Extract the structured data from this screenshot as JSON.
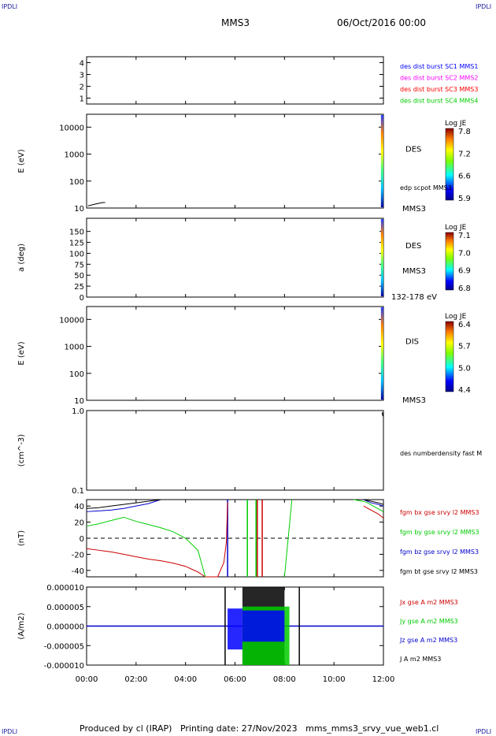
{
  "header": {
    "corner_tl": "IPDLI",
    "corner_tr": "IPDLI",
    "corner_bl": "IPDLI",
    "corner_br": "IPDLI",
    "spacecraft": "MMS3",
    "date": "06/Oct/2016 00:00"
  },
  "footer": {
    "text": "Produced by cl (IRAP)   Printing date: 27/Nov/2023   mms_mms3_srvy_vue_web1.cl"
  },
  "colors": {
    "mms1": "#0000ff",
    "mms2": "#ff00ff",
    "mms3": "#ff0000",
    "mms4": "#00cc00",
    "bx": "#cc0000",
    "by": "#00cc00",
    "bz": "#0000cc",
    "bt": "#000000"
  },
  "chart_data": [
    {
      "type": "line",
      "panel": "burst flags",
      "ylim": [
        0.5,
        4.5
      ],
      "yticks": [
        "1",
        "2",
        "3",
        "4"
      ],
      "legend": [
        {
          "label": "des dist burst SC1 MMS1",
          "color": "#0000ff"
        },
        {
          "label": "des dist burst SC2 MMS2",
          "color": "#ff00ff"
        },
        {
          "label": "des dist burst SC3 MMS3",
          "color": "#ff0000"
        },
        {
          "label": "des dist burst SC4 MMS4",
          "color": "#00cc00"
        }
      ],
      "series": []
    },
    {
      "type": "heatmap",
      "panel": "DES energy spectrogram",
      "ylabel": "E (eV)",
      "scale": "log",
      "ylim": [
        10,
        30000
      ],
      "yticks": [
        "10",
        "100",
        "1000",
        "10000"
      ],
      "label": "DES",
      "overlay_label": "edp scpot MMS3",
      "sc_label": "MMS3",
      "colorbar": {
        "title": "Log JE",
        "ticks": [
          "7.8",
          "7.2",
          "6.6",
          "5.9"
        ]
      },
      "data_interval_hours": [
        11.9,
        12.0
      ],
      "overlay_scpot": [
        [
          0.05,
          12
        ],
        [
          0.2,
          13
        ],
        [
          0.35,
          14
        ],
        [
          0.5,
          15
        ],
        [
          0.65,
          16
        ],
        [
          0.75,
          16
        ]
      ]
    },
    {
      "type": "heatmap",
      "panel": "DES pitch angle",
      "ylabel": "a (deg)",
      "ylim": [
        0,
        180
      ],
      "yticks": [
        "0",
        "25",
        "50",
        "75",
        "100",
        "125",
        "150"
      ],
      "label": "DES",
      "sc_label": "MMS3",
      "energy_range": "132-178 eV",
      "colorbar": {
        "title": "Log JE",
        "ticks": [
          "7.1",
          "7.0",
          "6.9",
          "6.8"
        ]
      },
      "data_interval_hours": [
        11.9,
        12.0
      ]
    },
    {
      "type": "heatmap",
      "panel": "DIS energy spectrogram",
      "ylabel": "E (eV)",
      "scale": "log",
      "ylim": [
        10,
        30000
      ],
      "yticks": [
        "10",
        "100",
        "1000",
        "10000"
      ],
      "label": "DIS",
      "sc_label": "MMS3",
      "colorbar": {
        "title": "Log JE",
        "ticks": [
          "6.4",
          "5.7",
          "5.0",
          "4.4"
        ]
      },
      "data_interval_hours": [
        11.9,
        12.0
      ]
    },
    {
      "type": "line",
      "panel": "density",
      "ylabel": "(cm^-3)",
      "scale": "log",
      "ylim": [
        0.1,
        1.0
      ],
      "yticks": [
        "0.1",
        "1.0"
      ],
      "legend": [
        {
          "label": "des numberdensity fast M",
          "color": "#000000"
        }
      ],
      "series": [
        {
          "x": [
            11.95,
            11.98
          ],
          "y": [
            0.95,
            0.85
          ]
        }
      ]
    },
    {
      "type": "line",
      "panel": "magnetic field",
      "ylabel": "(nT)",
      "ylim": [
        -48,
        48
      ],
      "yticks": [
        "-40",
        "-20",
        "0",
        "20",
        "40"
      ],
      "legend": [
        {
          "label": "fgm bx gse srvy l2 MMS3",
          "color": "#cc0000"
        },
        {
          "label": "fgm by gse srvy l2 MMS3",
          "color": "#00cc00"
        },
        {
          "label": "fgm bz gse srvy l2 MMS3",
          "color": "#0000cc"
        },
        {
          "label": "fgm bt gse srvy l2 MMS3",
          "color": "#000000"
        }
      ],
      "series": [
        {
          "name": "fgm bx gse srvy l2 MMS3",
          "x": [
            0,
            0.5,
            1,
            1.5,
            2,
            2.5,
            3,
            3.5,
            4,
            4.5,
            4.8,
            5.3,
            5.55,
            5.65,
            5.7,
            11.2,
            11.5,
            11.8,
            12
          ],
          "y": [
            -13,
            -15,
            -17,
            -20,
            -23,
            -26,
            -28,
            -31,
            -35,
            -42,
            -48,
            -48,
            -30,
            -5,
            45,
            40,
            35,
            30,
            25
          ]
        },
        {
          "name": "fgm by gse srvy l2 MMS3",
          "x": [
            0,
            0.5,
            1,
            1.5,
            2,
            2.5,
            3,
            3.5,
            4,
            4.5,
            4.8,
            8.0,
            8.15,
            8.3,
            10.8,
            11.3,
            11.7,
            12
          ],
          "y": [
            15,
            18,
            22,
            26,
            21,
            17,
            13,
            8,
            0,
            -15,
            -48,
            -48,
            0,
            48,
            48,
            45,
            38,
            33
          ]
        },
        {
          "name": "fgm bz gse srvy l2 MMS3",
          "x": [
            0,
            0.5,
            1,
            1.5,
            2,
            2.5,
            3,
            11.2,
            11.5,
            11.8,
            12
          ],
          "y": [
            33,
            34,
            35,
            37,
            40,
            43,
            48,
            48,
            44,
            42,
            40
          ]
        },
        {
          "name": "fgm bt gse srvy l2 MMS3",
          "x": [
            0,
            0.5,
            1,
            1.5,
            2,
            2.5,
            3,
            11.2,
            11.5,
            11.8,
            12
          ],
          "y": [
            37,
            38,
            40,
            42,
            44,
            46,
            48,
            48,
            46,
            44,
            42
          ]
        }
      ],
      "vertical_lines": [
        {
          "x": 5.7,
          "color": "#0000cc",
          "from": -48,
          "to": 48
        },
        {
          "x": 6.5,
          "color": "#00cc00",
          "from": -48,
          "to": 48
        },
        {
          "x": 6.85,
          "color": "#00cc00",
          "from": -48,
          "to": 48
        },
        {
          "x": 6.9,
          "color": "#cc0000",
          "from": -48,
          "to": 48
        },
        {
          "x": 7.1,
          "color": "#cc0000",
          "from": -48,
          "to": 48
        }
      ]
    },
    {
      "type": "line",
      "panel": "current density",
      "ylabel": "(A/m2)",
      "ylim": [
        -1e-05,
        1e-05
      ],
      "yticks": [
        "-0.000010",
        "-0.000005",
        "0.000000",
        "0.000005",
        "0.000010"
      ],
      "xticks": [
        "00:00",
        "02:00",
        "04:00",
        "06:00",
        "08:00",
        "10:00",
        "12:00"
      ],
      "xlim": [
        0,
        12
      ],
      "legend": [
        {
          "label": "Jx gse A m2 MMS3",
          "color": "#cc0000"
        },
        {
          "label": "Jy gse A m2 MMS3",
          "color": "#00cc00"
        },
        {
          "label": "Jz gse A m2 MMS3",
          "color": "#0000cc"
        },
        {
          "label": "J A m2 MMS3",
          "color": "#000000"
        }
      ],
      "active_interval_hours": [
        5.6,
        8.6
      ]
    }
  ]
}
